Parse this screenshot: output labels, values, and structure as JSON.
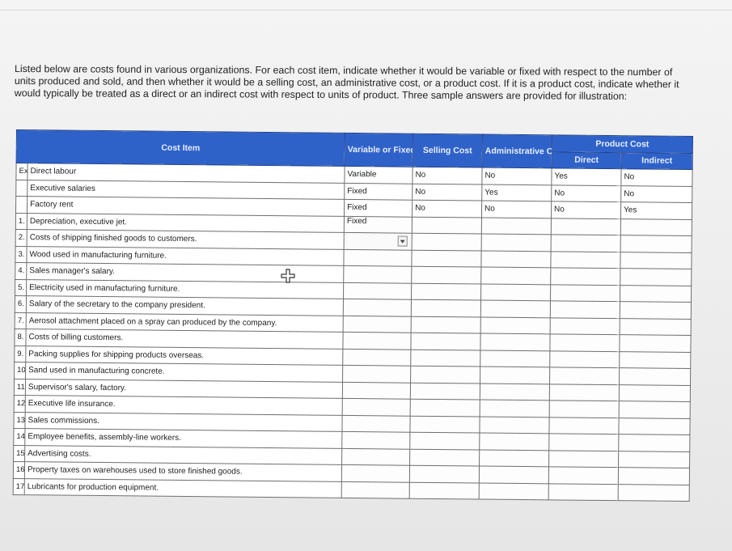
{
  "instructions": "Listed below are costs found in various organizations. For each cost item, indicate whether it would be variable or fixed with respect to the number of units produced and sold, and then whether it would be a selling cost, an administrative cost, or a product cost. If it is a product cost, indicate whether it would typically be treated as a direct or an indirect cost with respect to units of product. Three sample answers are provided for illustration:",
  "table": {
    "headers": {
      "cost_item": "Cost Item",
      "variable_or_fixed": "Variable or Fixed",
      "selling_cost": "Selling Cost",
      "administrative_cost": "Administrative Cost",
      "product_cost": "Product Cost",
      "direct": "Direct",
      "indirect": "Indirect"
    },
    "examples": [
      {
        "num": "Ex",
        "item": "Direct labour",
        "vf": "Variable",
        "selling": "No",
        "admin": "No",
        "direct": "Yes",
        "indirect": "No"
      },
      {
        "num": "",
        "item": "Executive salaries",
        "vf": "Fixed",
        "selling": "No",
        "admin": "Yes",
        "direct": "No",
        "indirect": "No"
      },
      {
        "num": "",
        "item": "Factory rent",
        "vf": "Fixed",
        "selling": "No",
        "admin": "No",
        "direct": "No",
        "indirect": "Yes"
      }
    ],
    "items": [
      {
        "num": "1.",
        "item": "Depreciation, executive jet.",
        "vf": "Fixed"
      },
      {
        "num": "2.",
        "item": "Costs of shipping finished goods to customers.",
        "vf": ""
      },
      {
        "num": "3.",
        "item": "Wood used in manufacturing furniture.",
        "vf": ""
      },
      {
        "num": "4.",
        "item": "Sales manager's salary.",
        "vf": ""
      },
      {
        "num": "5.",
        "item": "Electricity used in manufacturing furniture.",
        "vf": ""
      },
      {
        "num": "6.",
        "item": "Salary of the secretary to the company president.",
        "vf": ""
      },
      {
        "num": "7.",
        "item": "Aerosol attachment placed on a spray can produced by the company.",
        "vf": ""
      },
      {
        "num": "8.",
        "item": "Costs of billing customers.",
        "vf": ""
      },
      {
        "num": "9.",
        "item": "Packing supplies for shipping products overseas.",
        "vf": ""
      },
      {
        "num": "10.",
        "item": "Sand used in manufacturing concrete.",
        "vf": ""
      },
      {
        "num": "11.",
        "item": "Supervisor's salary, factory.",
        "vf": ""
      },
      {
        "num": "12.",
        "item": "Executive life insurance.",
        "vf": ""
      },
      {
        "num": "13.",
        "item": "Sales commissions.",
        "vf": ""
      },
      {
        "num": "14.",
        "item": "Employee benefits, assembly-line workers.",
        "vf": ""
      },
      {
        "num": "15.",
        "item": "Advertising costs.",
        "vf": ""
      },
      {
        "num": "16.",
        "item": "Property taxes on warehouses used to store finished goods.",
        "vf": ""
      },
      {
        "num": "17.",
        "item": "Lubricants for production equipment.",
        "vf": ""
      }
    ]
  },
  "icons": {
    "cursor": "move-cursor-icon",
    "dropdown": "dropdown-arrow-icon"
  },
  "colors": {
    "header_blue": "#2f62c9",
    "input_border": "#1f3d92"
  }
}
